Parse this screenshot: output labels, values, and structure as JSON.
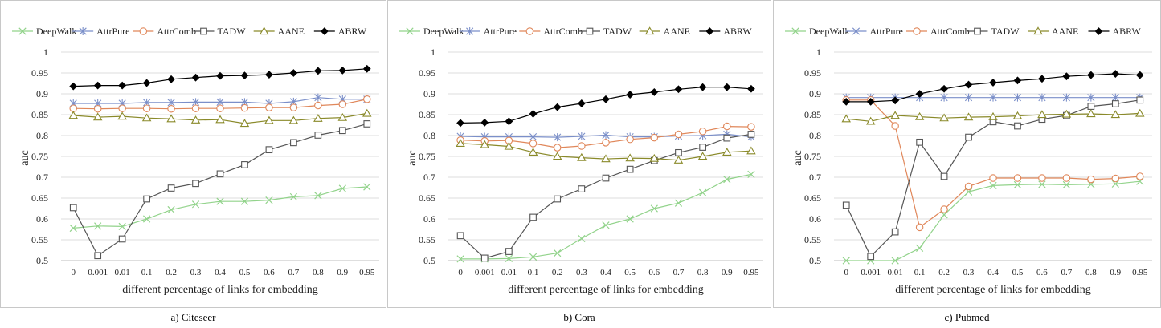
{
  "series_styles": {
    "DeepWalk": {
      "color": "#92d38b",
      "marker": "x"
    },
    "AttrPure": {
      "color": "#7b8fc9",
      "marker": "star"
    },
    "AttrComb": {
      "color": "#e0875a",
      "marker": "circle"
    },
    "TADW": {
      "color": "#555555",
      "marker": "square"
    },
    "AANE": {
      "color": "#8a8a2a",
      "marker": "triangle"
    },
    "ABRW": {
      "color": "#000000",
      "marker": "diamond"
    }
  },
  "chart_data": [
    {
      "type": "line",
      "caption": "a) Citeseer",
      "categories": [
        "0",
        "0.001",
        "0.01",
        "0.1",
        "0.2",
        "0.3",
        "0.4",
        "0.5",
        "0.6",
        "0.7",
        "0.8",
        "0.9",
        "0.95"
      ],
      "xlabel": "different  percentage  of links  for embedding",
      "ylabel": "auc",
      "ylim": [
        0.5,
        1
      ],
      "yticks": [
        "0.5",
        "0.55",
        "0.6",
        "0.65",
        "0.7",
        "0.75",
        "0.8",
        "0.85",
        "0.9",
        "0.95",
        "1"
      ],
      "legend": [
        "DeepWalk",
        "AttrPure",
        "AttrComb",
        "TADW",
        "AANE",
        "ABRW"
      ],
      "series": [
        {
          "name": "DeepWalk",
          "values": [
            0.578,
            0.583,
            0.582,
            0.6,
            0.622,
            0.635,
            0.642,
            0.642,
            0.645,
            0.653,
            0.656,
            0.673,
            0.677
          ]
        },
        {
          "name": "AttrPure",
          "values": [
            0.877,
            0.877,
            0.877,
            0.879,
            0.879,
            0.88,
            0.88,
            0.88,
            0.877,
            0.881,
            0.891,
            0.887,
            0.887
          ]
        },
        {
          "name": "AttrComb",
          "values": [
            0.865,
            0.864,
            0.865,
            0.865,
            0.864,
            0.865,
            0.865,
            0.866,
            0.867,
            0.867,
            0.872,
            0.875,
            0.887
          ]
        },
        {
          "name": "TADW",
          "values": [
            0.627,
            0.512,
            0.552,
            0.648,
            0.674,
            0.685,
            0.708,
            0.73,
            0.766,
            0.783,
            0.801,
            0.812,
            0.828
          ]
        },
        {
          "name": "AANE",
          "values": [
            0.848,
            0.844,
            0.846,
            0.842,
            0.84,
            0.837,
            0.838,
            0.829,
            0.836,
            0.836,
            0.841,
            0.843,
            0.853
          ]
        },
        {
          "name": "ABRW",
          "values": [
            0.918,
            0.92,
            0.92,
            0.926,
            0.935,
            0.939,
            0.943,
            0.944,
            0.946,
            0.95,
            0.955,
            0.956,
            0.96
          ]
        }
      ]
    },
    {
      "type": "line",
      "caption": "b) Cora",
      "categories": [
        "0",
        "0.001",
        "0.01",
        "0.1",
        "0.2",
        "0.3",
        "0.4",
        "0.5",
        "0.6",
        "0.7",
        "0.8",
        "0.9",
        "0.95"
      ],
      "xlabel": "different  percentage  of links  for embedding",
      "ylabel": "auc",
      "ylim": [
        0.5,
        1
      ],
      "yticks": [
        "0.5",
        "0.55",
        "0.6",
        "0.65",
        "0.7",
        "0.75",
        "0.8",
        "0.85",
        "0.9",
        "0.95",
        "1"
      ],
      "legend": [
        "DeepWalk",
        "AttrPure",
        "AttrComb",
        "TADW",
        "AANE",
        "ABRW"
      ],
      "series": [
        {
          "name": "DeepWalk",
          "values": [
            0.504,
            0.504,
            0.505,
            0.509,
            0.518,
            0.553,
            0.585,
            0.6,
            0.625,
            0.638,
            0.663,
            0.695,
            0.707
          ]
        },
        {
          "name": "AttrPure",
          "values": [
            0.798,
            0.797,
            0.797,
            0.797,
            0.796,
            0.798,
            0.801,
            0.797,
            0.797,
            0.799,
            0.8,
            0.803,
            0.797
          ]
        },
        {
          "name": "AttrComb",
          "values": [
            0.789,
            0.787,
            0.788,
            0.781,
            0.771,
            0.775,
            0.783,
            0.791,
            0.795,
            0.803,
            0.81,
            0.822,
            0.821
          ]
        },
        {
          "name": "TADW",
          "values": [
            0.56,
            0.506,
            0.522,
            0.604,
            0.648,
            0.672,
            0.698,
            0.719,
            0.74,
            0.759,
            0.772,
            0.794,
            0.803
          ]
        },
        {
          "name": "AANE",
          "values": [
            0.781,
            0.778,
            0.774,
            0.76,
            0.75,
            0.747,
            0.744,
            0.746,
            0.745,
            0.741,
            0.75,
            0.76,
            0.763
          ]
        },
        {
          "name": "ABRW",
          "values": [
            0.83,
            0.831,
            0.834,
            0.852,
            0.868,
            0.877,
            0.887,
            0.898,
            0.904,
            0.911,
            0.916,
            0.916,
            0.912
          ]
        }
      ]
    },
    {
      "type": "line",
      "caption": "c) Pubmed",
      "categories": [
        "0",
        "0.001",
        "0.01",
        "0.1",
        "0.2",
        "0.3",
        "0.4",
        "0.5",
        "0.6",
        "0.7",
        "0.8",
        "0.9",
        "0.95"
      ],
      "xlabel": "different  percentage  of links  for embedding",
      "ylabel": "auc",
      "ylim": [
        0.5,
        1
      ],
      "yticks": [
        "0.5",
        "0.55",
        "0.6",
        "0.65",
        "0.7",
        "0.75",
        "0.8",
        "0.85",
        "0.9",
        "0.95",
        "1"
      ],
      "legend": [
        "DeepWalk",
        "AttrPure",
        "AttrComb",
        "TADW",
        "AANE",
        "ABRW"
      ],
      "series": [
        {
          "name": "DeepWalk",
          "values": [
            0.5,
            0.5,
            0.5,
            0.53,
            0.61,
            0.665,
            0.68,
            0.682,
            0.683,
            0.682,
            0.683,
            0.684,
            0.69
          ]
        },
        {
          "name": "AttrPure",
          "values": [
            0.891,
            0.891,
            0.891,
            0.891,
            0.891,
            0.891,
            0.891,
            0.891,
            0.891,
            0.891,
            0.891,
            0.891,
            0.891
          ]
        },
        {
          "name": "AttrComb",
          "values": [
            0.885,
            0.885,
            0.823,
            0.58,
            0.623,
            0.678,
            0.698,
            0.698,
            0.698,
            0.698,
            0.695,
            0.697,
            0.702
          ]
        },
        {
          "name": "TADW",
          "values": [
            0.633,
            0.51,
            0.569,
            0.784,
            0.702,
            0.796,
            0.833,
            0.823,
            0.839,
            0.848,
            0.87,
            0.876,
            0.885
          ]
        },
        {
          "name": "AANE",
          "values": [
            0.84,
            0.834,
            0.848,
            0.845,
            0.842,
            0.844,
            0.845,
            0.847,
            0.85,
            0.851,
            0.852,
            0.85,
            0.853
          ]
        },
        {
          "name": "ABRW",
          "values": [
            0.881,
            0.881,
            0.884,
            0.9,
            0.912,
            0.922,
            0.927,
            0.932,
            0.936,
            0.942,
            0.945,
            0.948,
            0.945
          ]
        }
      ]
    }
  ]
}
